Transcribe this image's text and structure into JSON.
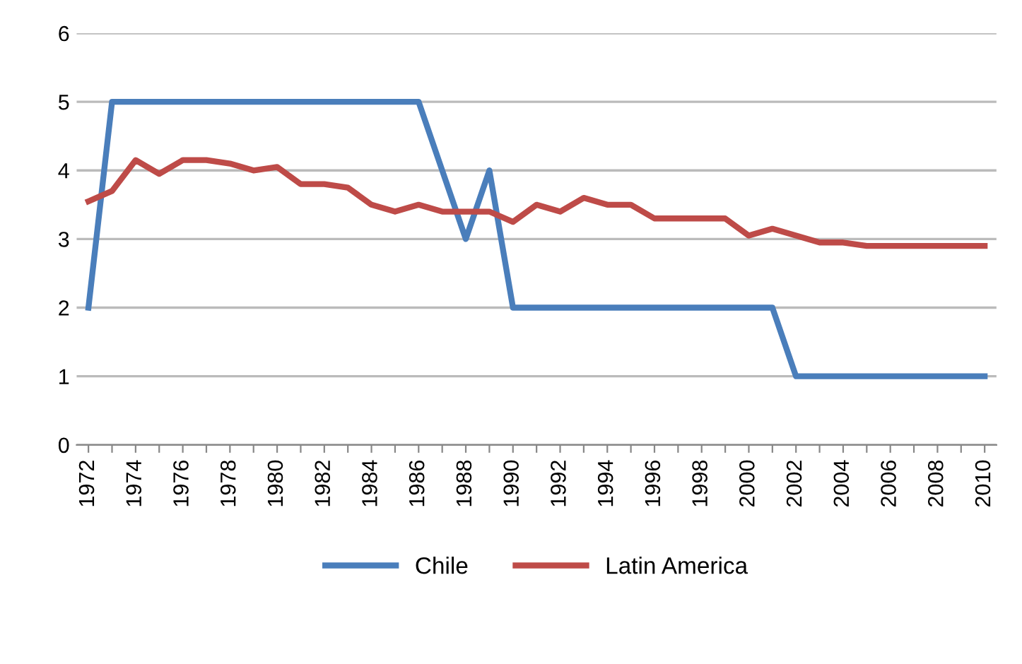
{
  "chart_data": {
    "type": "line",
    "categories": [
      "1972",
      null,
      "1974",
      null,
      "1976",
      null,
      "1978",
      null,
      "1980",
      null,
      "1982",
      null,
      "1984",
      null,
      "1986",
      null,
      "1988",
      null,
      "1990",
      null,
      "1992",
      null,
      "1994",
      null,
      "1996",
      null,
      "1998",
      null,
      "2000",
      null,
      "2002",
      null,
      "2004",
      null,
      "2006",
      null,
      "2008",
      null,
      "2010"
    ],
    "series": [
      {
        "name": "Chile",
        "color": "#4a7ebb",
        "values": [
          2,
          5,
          5,
          5,
          5,
          5,
          5,
          5,
          5,
          5,
          5,
          5,
          5,
          5,
          5,
          4,
          3,
          4,
          2,
          2,
          2,
          2,
          2,
          2,
          2,
          2,
          2,
          2,
          2,
          2,
          1,
          1,
          1,
          1,
          1,
          1,
          1,
          1,
          1
        ]
      },
      {
        "name": "Latin America",
        "color": "#be4b48",
        "values": [
          3.55,
          3.7,
          4.15,
          3.95,
          4.15,
          4.15,
          4.1,
          4.0,
          4.05,
          3.8,
          3.8,
          3.75,
          3.5,
          3.4,
          3.5,
          3.4,
          3.4,
          3.4,
          3.25,
          3.5,
          3.4,
          3.6,
          3.5,
          3.5,
          3.3,
          3.3,
          3.3,
          3.3,
          3.05,
          3.15,
          3.05,
          2.95,
          2.95,
          2.9,
          2.9,
          2.9,
          2.9,
          2.9,
          2.9
        ]
      }
    ],
    "ylim": [
      0,
      6
    ],
    "yticks": [
      0,
      1,
      2,
      3,
      4,
      5,
      6
    ],
    "grid": "y",
    "legend": "bottom",
    "line_style": "solid",
    "marker": "none"
  }
}
